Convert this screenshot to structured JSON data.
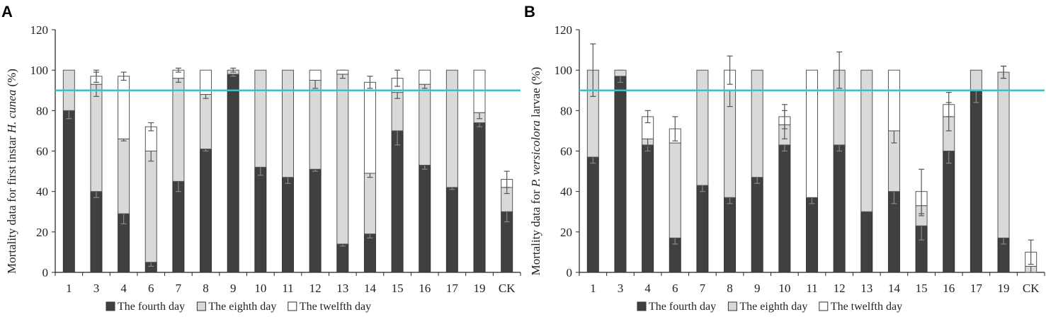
{
  "colors": {
    "fourth": "#404040",
    "eighth": "#d9d9d9",
    "twelfth": "#ffffff",
    "threshold": "#3fbfbf",
    "axis": "#222222"
  },
  "chart_data": [
    {
      "panel": "A",
      "type": "bar",
      "stacked": true,
      "ylabel_pre": "Mortality data for first instar ",
      "ylabel_italic": "H. cunea",
      "ylabel_post": " (%)",
      "ylim": [
        0,
        120
      ],
      "yticks": [
        0,
        20,
        40,
        60,
        80,
        100,
        120
      ],
      "threshold": 90,
      "categories": [
        "1",
        "3",
        "4",
        "6",
        "7",
        "8",
        "9",
        "10",
        "11",
        "12",
        "13",
        "14",
        "15",
        "16",
        "17",
        "19",
        "CK"
      ],
      "series": [
        {
          "name": "The fourth day",
          "values": [
            80,
            40,
            29,
            5,
            45,
            61,
            98,
            52,
            47,
            51,
            14,
            19,
            70,
            53,
            42,
            74,
            30
          ],
          "errors": [
            4,
            3,
            5,
            2,
            5,
            1,
            1,
            4,
            3,
            1,
            1,
            2,
            7,
            2,
            1,
            2,
            5
          ]
        },
        {
          "name": "The eighth day",
          "values": [
            20,
            53,
            37,
            55,
            51,
            27,
            2,
            48,
            53,
            44,
            84,
            30,
            19,
            40,
            58,
            5,
            12
          ],
          "errors": [
            0,
            6,
            1,
            5,
            2,
            2,
            1,
            0,
            0,
            4,
            2,
            2,
            3,
            2,
            0,
            3,
            3
          ]
        },
        {
          "name": "The twelfth day",
          "values": [
            0,
            4,
            31,
            12,
            4,
            12,
            0,
            0,
            0,
            5,
            2,
            45,
            7,
            7,
            0,
            21,
            4
          ],
          "errors": [
            0,
            3,
            2,
            2,
            1,
            0,
            0,
            0,
            0,
            0,
            0,
            3,
            4,
            0,
            0,
            0,
            4
          ]
        }
      ],
      "legend": [
        "The fourth day",
        "The eighth day",
        "The twelfth day"
      ]
    },
    {
      "panel": "B",
      "type": "bar",
      "stacked": true,
      "ylabel_pre": "Mortality data for ",
      "ylabel_italic": "P. versicolora",
      "ylabel_post": " larvae (%)",
      "ylim": [
        0,
        120
      ],
      "yticks": [
        0,
        20,
        40,
        60,
        80,
        100,
        120
      ],
      "threshold": 90,
      "categories": [
        "1",
        "3",
        "4",
        "6",
        "7",
        "8",
        "9",
        "10",
        "11",
        "12",
        "13",
        "14",
        "15",
        "16",
        "17",
        "19",
        "CK"
      ],
      "series": [
        {
          "name": "The fourth day",
          "values": [
            57,
            97,
            63,
            17,
            43,
            37,
            47,
            63,
            37,
            63,
            30,
            40,
            23,
            60,
            90,
            17,
            0
          ],
          "errors": [
            3,
            3,
            3,
            3,
            3,
            3,
            3,
            3,
            3,
            3,
            0,
            6,
            7,
            6,
            6,
            3,
            0
          ]
        },
        {
          "name": "The eighth day",
          "values": [
            43,
            3,
            3,
            47,
            57,
            53,
            53,
            10,
            0,
            37,
            70,
            30,
            10,
            17,
            10,
            82,
            3
          ],
          "errors": [
            13,
            0,
            4,
            0,
            0,
            8,
            0,
            7,
            0,
            9,
            0,
            6,
            5,
            7,
            0,
            3,
            3
          ]
        },
        {
          "name": "The twelfth day",
          "values": [
            0,
            0,
            11,
            7,
            0,
            10,
            0,
            4,
            63,
            0,
            0,
            30,
            7,
            6,
            0,
            0,
            7
          ],
          "errors": [
            0,
            0,
            3,
            6,
            0,
            7,
            0,
            6,
            0,
            0,
            0,
            0,
            11,
            6,
            0,
            3,
            6
          ]
        }
      ],
      "legend": [
        "The fourth day",
        "The eighth day",
        "The twelfth day"
      ]
    }
  ]
}
